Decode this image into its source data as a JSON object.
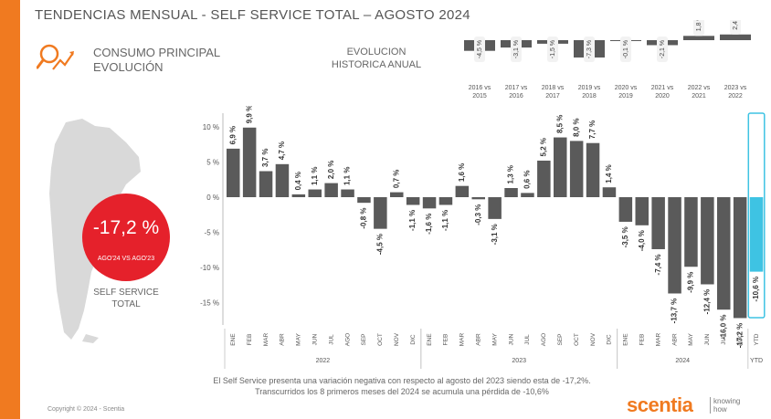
{
  "header": {
    "title": "TENDENCIAS MENSUAL - SELF SERVICE TOTAL –   AGOSTO 2024",
    "consumo_line1": "CONSUMO PRINCIPAL",
    "consumo_line2": "EVOLUCIÓN",
    "evol_line1": "EVOLUCION",
    "evol_line2": "HISTORICA ANUAL"
  },
  "kpi": {
    "value": "-17,2 %",
    "sub": "AGO'24 VS AGO'23",
    "label_line1": "SELF SERVICE",
    "label_line2": "TOTAL"
  },
  "colors": {
    "accent": "#f07a20",
    "bar": "#5a5a5a",
    "ytd": "#3ec3e3",
    "kpi": "#e5212b",
    "map": "#d9d9d9"
  },
  "annual_chart": {
    "type": "bar",
    "categories": [
      [
        "2016 vs",
        "2015"
      ],
      [
        "2017 vs",
        "2016"
      ],
      [
        "2018 vs",
        "2017"
      ],
      [
        "2019 vs",
        "2018"
      ],
      [
        "2020 vs",
        "2019"
      ],
      [
        "2021 vs",
        "2020"
      ],
      [
        "2022 vs",
        "2021"
      ],
      [
        "2023 vs",
        "2022"
      ]
    ],
    "values": [
      -4.5,
      -3.1,
      -1.5,
      -7.3,
      -0.1,
      -2.1,
      1.8,
      2.4
    ],
    "labels": [
      "-4,5 %",
      "-3,1 %",
      "-1,5 %",
      "-7,3 %",
      "-0,1 %",
      "-2,1 %",
      "1,8 %",
      "2,4 %"
    ]
  },
  "chart_data": {
    "type": "bar",
    "title": "Tendencias mensual - Self Service Total",
    "ylim": [
      -18,
      11
    ],
    "yticks": [
      10,
      5,
      0,
      -5,
      -10,
      -15
    ],
    "ytick_labels": [
      "10 %",
      "5 %",
      "0 %",
      "-5 %",
      "-10 %",
      "-15 %"
    ],
    "categories": [
      "ENE",
      "FEB",
      "MAR",
      "ABR",
      "MAY",
      "JUN",
      "JUL",
      "AGO",
      "SEP",
      "OCT",
      "NOV",
      "DIC",
      "ENE",
      "FEB",
      "MAR",
      "ABR",
      "MAY",
      "JUN",
      "JUL",
      "AGO",
      "SEP",
      "OCT",
      "NOV",
      "DIC",
      "ENE",
      "FEB",
      "MAR",
      "ABR",
      "MAY",
      "JUN",
      "JUL",
      "AGO",
      "YTD"
    ],
    "values": [
      6.9,
      9.9,
      3.7,
      4.7,
      0.4,
      1.1,
      2.0,
      1.1,
      -0.8,
      -4.5,
      0.7,
      -1.1,
      -1.6,
      -1.1,
      1.6,
      -0.3,
      -3.1,
      1.3,
      0.6,
      5.2,
      8.5,
      8.0,
      7.7,
      1.4,
      -3.5,
      -4.0,
      -7.4,
      -13.7,
      -9.9,
      -12.4,
      -16.0,
      -17.2,
      -10.6
    ],
    "labels": [
      "6,9 %",
      "9,9 %",
      "3,7 %",
      "4,7 %",
      "0,4 %",
      "1,1 %",
      "2,0 %",
      "1,1 %",
      "-0,8 %",
      "-4,5 %",
      "0,7 %",
      "-1,1 %",
      "-1,6 %",
      "-1,1 %",
      "1,6 %",
      "-0,3 %",
      "-3,1 %",
      "1,3 %",
      "0,6 %",
      "5,2 %",
      "8,5 %",
      "8,0 %",
      "7,7 %",
      "1,4 %",
      "-3,5 %",
      "-4,0 %",
      "-7,4 %",
      "-13,7 %",
      "-9,9 %",
      "-12,4 %",
      "-16,0 %",
      "-17,2 %",
      "-10,6 %"
    ],
    "year_groups": [
      {
        "label": "2022",
        "start": 0,
        "count": 12
      },
      {
        "label": "2023",
        "start": 12,
        "count": 12
      },
      {
        "label": "2024",
        "start": 24,
        "count": 8
      }
    ],
    "highlight_last": true
  },
  "footer": {
    "note_line1": "El Self Service presenta una variación negativa con respecto al agosto del 2023 siendo esta de -17,2%.",
    "note_line2": "Transcurridos los 8 primeros meses del 2024 se acumula una pérdida de -10,6%",
    "copyright": "Copyright © 2024 - Scentia",
    "brand": "scentia",
    "tagline1": "knowing",
    "tagline2": "how"
  }
}
